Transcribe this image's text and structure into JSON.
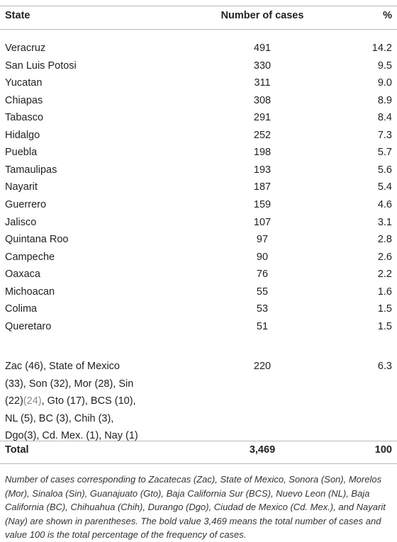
{
  "table": {
    "headers": {
      "state": "State",
      "cases": "Number of cases",
      "pct": "%"
    },
    "rows": [
      {
        "state": "Veracruz",
        "cases": "491",
        "pct": "14.2"
      },
      {
        "state": "San Luis Potosi",
        "cases": "330",
        "pct": "9.5"
      },
      {
        "state": "Yucatan",
        "cases": "311",
        "pct": "9.0"
      },
      {
        "state": "Chiapas",
        "cases": "308",
        "pct": "8.9"
      },
      {
        "state": "Tabasco",
        "cases": "291",
        "pct": "8.4"
      },
      {
        "state": "Hidalgo",
        "cases": "252",
        "pct": "7.3"
      },
      {
        "state": "Puebla",
        "cases": "198",
        "pct": "5.7"
      },
      {
        "state": "Tamaulipas",
        "cases": "193",
        "pct": "5.6"
      },
      {
        "state": "Nayarit",
        "cases": "187",
        "pct": "5.4"
      },
      {
        "state": "Guerrero",
        "cases": "159",
        "pct": "4.6"
      },
      {
        "state": "Jalisco",
        "cases": "107",
        "pct": "3.1"
      },
      {
        "state": "Quintana Roo",
        "cases": "97",
        "pct": "2.8"
      },
      {
        "state": "Campeche",
        "cases": "90",
        "pct": "2.6"
      },
      {
        "state": "Oaxaca",
        "cases": "76",
        "pct": "2.2"
      },
      {
        "state": "Michoacan",
        "cases": "55",
        "pct": "1.6"
      },
      {
        "state": "Colima",
        "cases": "53",
        "pct": "1.5"
      },
      {
        "state": "Queretaro",
        "cases": "51",
        "pct": "1.5"
      }
    ],
    "others": {
      "line1": "Zac (46), State of Mexico",
      "line2": "(33), Son (32), Mor (28), Sin",
      "line3a": "(22)",
      "line3b": "(24)",
      "line3c": ", Gto (17), BCS (10),",
      "line4": "NL (5), BC (3), Chih (3),",
      "line5": "Dgo(3), Cd. Mex. (1), Nay (1)",
      "cases": "220",
      "pct": "6.3"
    },
    "total": {
      "state": "Total",
      "cases": "3,469",
      "pct": "100"
    }
  },
  "footnote": "Number of cases corresponding to Zacatecas (Zac), State of Mexico, Sonora (Son), Morelos (Mor), Sinaloa (Sin), Guanajuato (Gto), Baja California Sur (BCS), Nuevo Leon (NL), Baja California (BC), Chihuahua (Chih), Durango (Dgo), Ciudad de Mexico (Cd. Mex.), and Nayarit (Nay) are shown in parentheses. The bold value 3,469 means the total number of cases and value 100 is the total percentage of the frequency of cases."
}
